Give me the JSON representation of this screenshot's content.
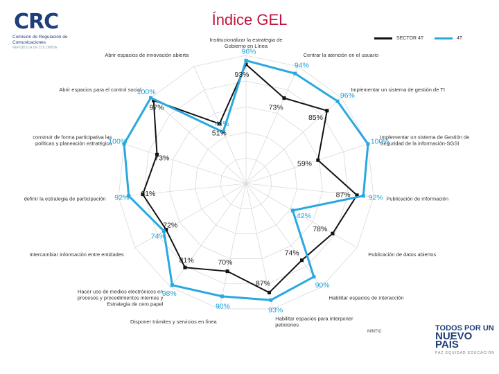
{
  "title": "Índice GEL",
  "logo": {
    "text": "CRC",
    "subtitle": "Comisión de Regulación de Comunicaciones",
    "country": "REPÚBLICA DE COLOMBIA"
  },
  "footer": {
    "mintic": "MINTIC",
    "slogan_line1": "TODOS POR UN",
    "slogan_line2": "NUEVO PAÍS",
    "slogan_small": "PAZ  EQUIDAD  EDUCACIÓN"
  },
  "colors": {
    "sector": "#111111",
    "crc": "#29a8e0",
    "grid": "#d9d9d9"
  },
  "chart_data": {
    "type": "radar",
    "title": "Índice GEL",
    "legend_position": "top-right",
    "range": [
      0,
      100
    ],
    "grid": true,
    "categories": [
      "Institucionalizar la estrategia de Gobierno en Línea",
      "Centrar la atención en el usuario",
      "Implementar un sistema de gestión de TI",
      "Implementar un sistema de Gestión de Seguridad de la información-SGSI",
      "Publicación de información",
      "Publicación de datos abiertos",
      "Habilitar espacios de interacción",
      "Habilitar espacios para interponer peticiones",
      "Disponer trámites y servicios en línea",
      "Hacer uso de medios electrónicos en procesos y procedimientos internos y Estrategia de cero papel",
      "Intercambiar información entre entidades",
      "definir la estrategia de participación",
      "construir de forma participativa las políticas y planeación estratégica",
      "Abrir espacios para el control social",
      "Abrir espacios de innovación abierta"
    ],
    "series": [
      {
        "name": "SECTOR 4T",
        "values": [
          93,
          73,
          85,
          59,
          87,
          78,
          74,
          87,
          70,
          81,
          72,
          81,
          73,
          97,
          51
        ],
        "labels": [
          "93%",
          "73%",
          "85%",
          "59%",
          "87%",
          "78%",
          "74%",
          "87%",
          "70%",
          "81%",
          "72%",
          "81%",
          "73%",
          "97%",
          "51%"
        ]
      },
      {
        "name": "4T",
        "values": [
          96,
          94,
          96,
          100,
          92,
          42,
          90,
          93,
          90,
          98,
          74,
          92,
          100,
          100,
          44
        ],
        "labels": [
          "96%",
          "94%",
          "96%",
          "100%",
          "92%",
          "42%",
          "90%",
          "93%",
          "90%",
          "98%",
          "74%",
          "92%",
          "100%",
          "100%",
          "44%"
        ]
      }
    ]
  }
}
